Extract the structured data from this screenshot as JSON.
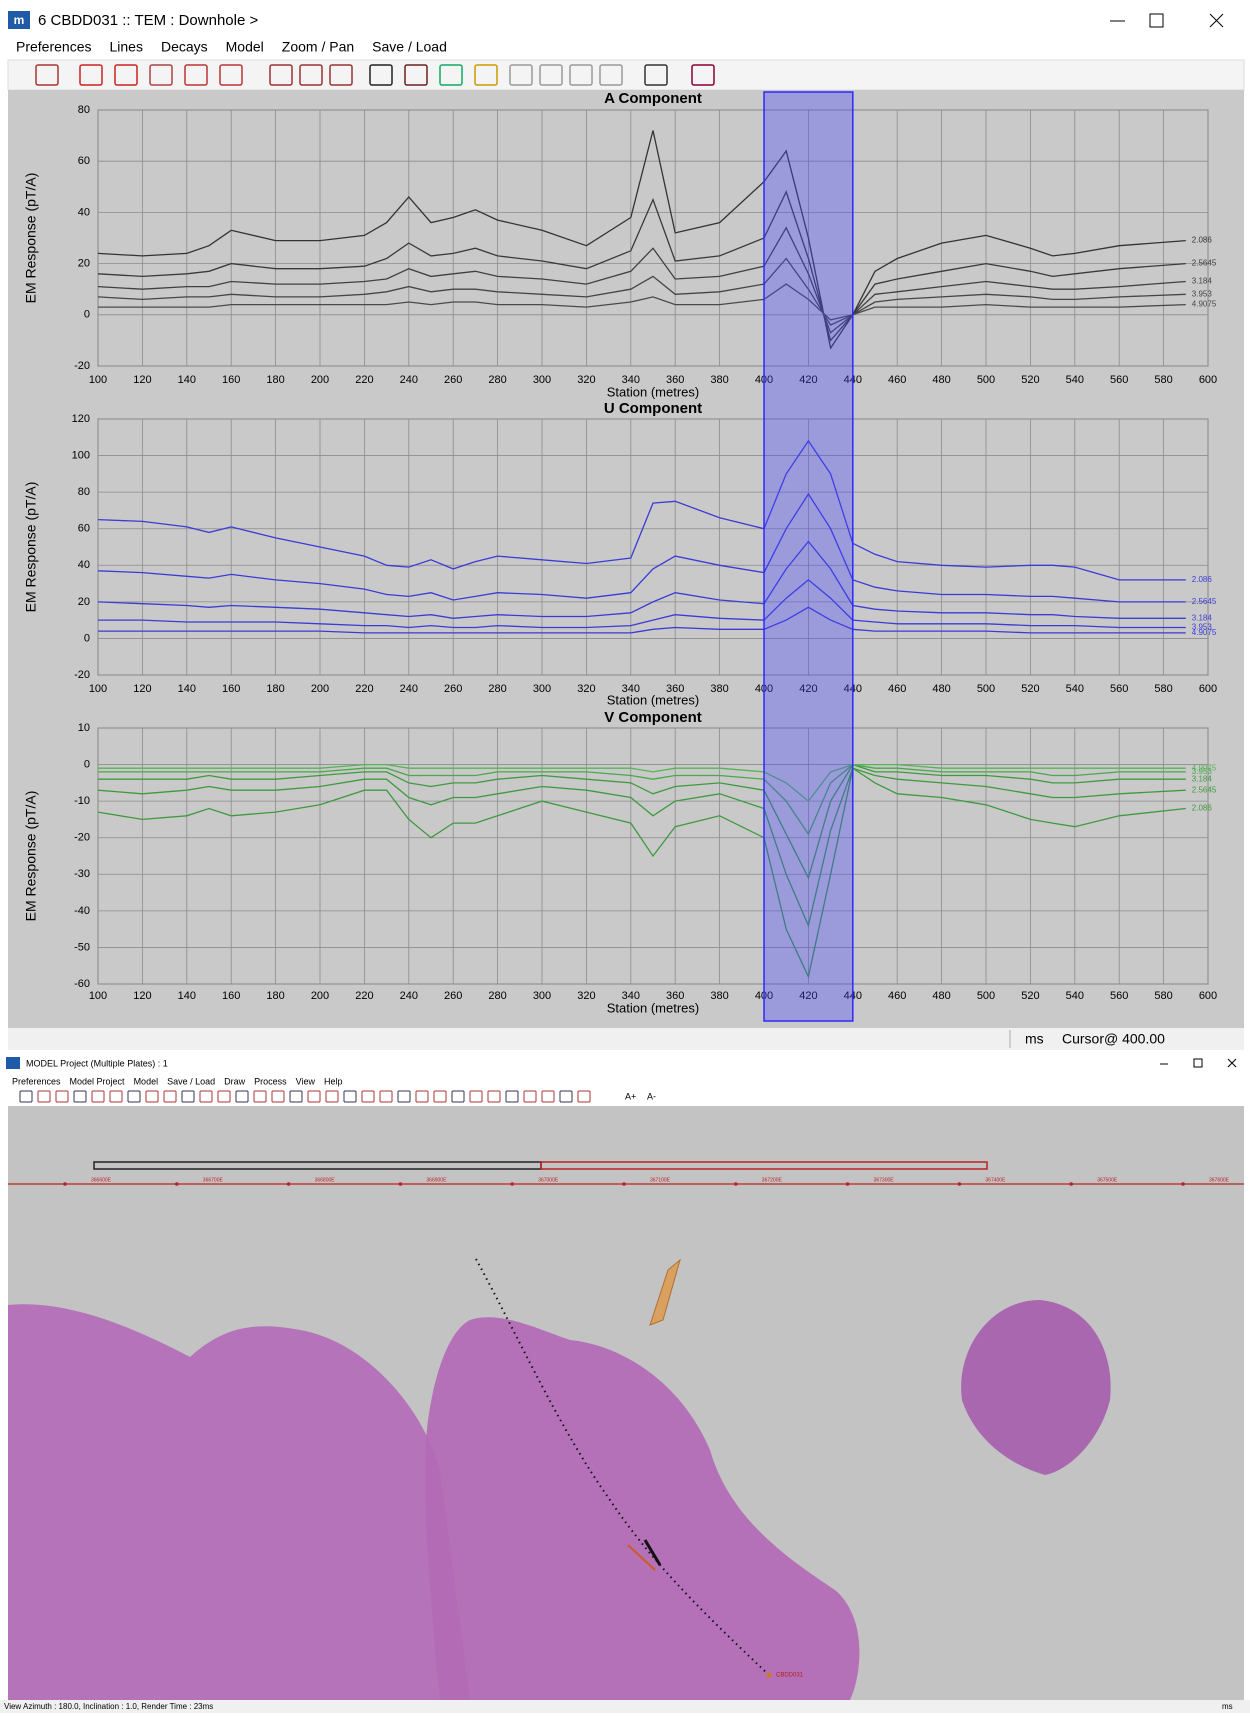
{
  "window": {
    "title": "6 CBDD031 :: TEM : Downhole >",
    "menu": [
      "Preferences",
      "Lines",
      "Decays",
      "Model",
      "Zoom / Pan",
      "Save / Load"
    ],
    "status_unit": "ms",
    "status_cursor": "Cursor@ 400.00"
  },
  "chart_data": [
    {
      "type": "line",
      "title": "A Component",
      "xlabel": "Station (metres)",
      "ylabel": "EM Response (pT/A)",
      "highlight": [
        400,
        440
      ],
      "x": [
        100,
        120,
        140,
        150,
        160,
        180,
        200,
        220,
        230,
        240,
        250,
        260,
        270,
        280,
        300,
        320,
        340,
        350,
        360,
        380,
        400,
        410,
        420,
        430,
        440,
        450,
        460,
        480,
        500,
        520,
        530,
        540,
        560,
        590
      ],
      "xlim": [
        100,
        600
      ],
      "xticks": [
        100,
        120,
        140,
        160,
        180,
        200,
        220,
        240,
        260,
        280,
        300,
        320,
        340,
        360,
        380,
        400,
        420,
        440,
        460,
        480,
        500,
        520,
        540,
        560,
        580,
        600
      ],
      "ylim": [
        -20,
        80
      ],
      "yticks": [
        -20,
        0,
        20,
        40,
        60,
        80
      ],
      "grid": true,
      "series": [
        {
          "name": "2.086",
          "color": "#333333",
          "values": [
            24,
            23,
            24,
            27,
            33,
            29,
            29,
            31,
            36,
            46,
            36,
            38,
            41,
            37,
            33,
            27,
            38,
            72,
            32,
            36,
            52,
            64,
            30,
            -13,
            0,
            17,
            22,
            28,
            31,
            26,
            23,
            24,
            27,
            29
          ]
        },
        {
          "name": "2.5645",
          "color": "#3a3a3a",
          "values": [
            16,
            15,
            16,
            17,
            20,
            18,
            18,
            19,
            22,
            28,
            23,
            24,
            26,
            23,
            21,
            18,
            25,
            45,
            21,
            23,
            30,
            48,
            22,
            -10,
            0,
            12,
            14,
            17,
            20,
            17,
            15,
            16,
            18,
            20
          ]
        },
        {
          "name": "3.184",
          "color": "#404040",
          "values": [
            11,
            10,
            11,
            11,
            13,
            12,
            12,
            13,
            14,
            18,
            15,
            16,
            17,
            15,
            14,
            12,
            17,
            26,
            14,
            15,
            19,
            34,
            16,
            -7,
            0,
            8,
            9,
            11,
            13,
            11,
            10,
            10,
            11,
            13
          ]
        },
        {
          "name": "3.953",
          "color": "#454545",
          "values": [
            7,
            6,
            7,
            7,
            8,
            7,
            7,
            8,
            9,
            11,
            9,
            10,
            10,
            9,
            8,
            7,
            10,
            15,
            8,
            9,
            12,
            22,
            10,
            -4,
            0,
            5,
            6,
            7,
            8,
            7,
            6,
            6,
            7,
            8
          ]
        },
        {
          "name": "4.9075",
          "color": "#4a4a4a",
          "values": [
            3,
            3,
            3,
            3,
            4,
            4,
            4,
            4,
            4,
            5,
            4,
            5,
            5,
            4,
            4,
            3,
            5,
            7,
            4,
            4,
            6,
            12,
            6,
            -2,
            0,
            3,
            3,
            3,
            4,
            3,
            3,
            3,
            3,
            4
          ]
        }
      ]
    },
    {
      "type": "line",
      "title": "U Component",
      "xlabel": "Station (metres)",
      "ylabel": "EM Response (pT/A)",
      "highlight": [
        400,
        440
      ],
      "x": [
        100,
        120,
        140,
        150,
        160,
        180,
        200,
        220,
        230,
        240,
        250,
        260,
        270,
        280,
        300,
        320,
        340,
        350,
        360,
        380,
        400,
        410,
        420,
        430,
        440,
        450,
        460,
        480,
        500,
        520,
        530,
        540,
        560,
        590
      ],
      "xlim": [
        100,
        600
      ],
      "xticks": [
        100,
        120,
        140,
        160,
        180,
        200,
        220,
        240,
        260,
        280,
        300,
        320,
        340,
        360,
        380,
        400,
        420,
        440,
        460,
        480,
        500,
        520,
        540,
        560,
        580,
        600
      ],
      "ylim": [
        -20,
        120
      ],
      "yticks": [
        -20,
        0,
        20,
        40,
        60,
        80,
        100,
        120
      ],
      "grid": true,
      "series": [
        {
          "name": "2.086",
          "color": "#3b3bd6",
          "values": [
            65,
            64,
            61,
            58,
            61,
            55,
            50,
            45,
            40,
            39,
            43,
            38,
            42,
            45,
            43,
            41,
            44,
            74,
            75,
            66,
            60,
            90,
            108,
            90,
            52,
            46,
            42,
            40,
            39,
            40,
            40,
            39,
            32,
            32
          ]
        },
        {
          "name": "2.5645",
          "color": "#3b3bd6",
          "values": [
            37,
            36,
            34,
            33,
            35,
            32,
            30,
            27,
            24,
            23,
            25,
            21,
            23,
            25,
            24,
            22,
            25,
            38,
            45,
            40,
            36,
            60,
            79,
            60,
            32,
            28,
            26,
            24,
            24,
            23,
            23,
            22,
            20,
            20
          ]
        },
        {
          "name": "3.184",
          "color": "#3b3bd6",
          "values": [
            20,
            19,
            18,
            17,
            18,
            17,
            16,
            14,
            13,
            12,
            13,
            11,
            12,
            13,
            12,
            12,
            14,
            20,
            25,
            21,
            19,
            38,
            53,
            38,
            18,
            16,
            15,
            14,
            14,
            13,
            13,
            12,
            11,
            11
          ]
        },
        {
          "name": "3.953",
          "color": "#3b3bd6",
          "values": [
            10,
            10,
            9,
            9,
            9,
            9,
            8,
            7,
            7,
            6,
            7,
            6,
            6,
            7,
            6,
            6,
            7,
            10,
            13,
            11,
            10,
            22,
            32,
            22,
            10,
            9,
            8,
            8,
            8,
            7,
            7,
            7,
            6,
            6
          ]
        },
        {
          "name": "4.9075",
          "color": "#3b3bd6",
          "values": [
            4,
            4,
            4,
            4,
            4,
            4,
            4,
            3,
            3,
            3,
            3,
            3,
            3,
            3,
            3,
            3,
            3,
            5,
            6,
            5,
            5,
            10,
            17,
            10,
            5,
            4,
            4,
            4,
            4,
            3,
            3,
            3,
            3,
            3
          ]
        }
      ]
    },
    {
      "type": "line",
      "title": "V Component",
      "xlabel": "Station (metres)",
      "ylabel": "EM Response (pT/A)",
      "highlight": [
        400,
        440
      ],
      "x": [
        100,
        120,
        140,
        150,
        160,
        180,
        200,
        220,
        230,
        240,
        250,
        260,
        270,
        280,
        300,
        320,
        340,
        350,
        360,
        380,
        400,
        410,
        420,
        430,
        440,
        450,
        460,
        480,
        500,
        520,
        530,
        540,
        560,
        590
      ],
      "xlim": [
        100,
        600
      ],
      "xticks": [
        100,
        120,
        140,
        160,
        180,
        200,
        220,
        240,
        260,
        280,
        300,
        320,
        340,
        360,
        380,
        400,
        420,
        440,
        460,
        480,
        500,
        520,
        540,
        560,
        580,
        600
      ],
      "ylim": [
        -60,
        10
      ],
      "yticks": [
        -60,
        -50,
        -40,
        -30,
        -20,
        -10,
        0,
        10
      ],
      "grid": true,
      "series": [
        {
          "name": "2.086",
          "color": "#3f9a3f",
          "values": [
            -13,
            -15,
            -14,
            -12,
            -14,
            -13,
            -11,
            -7,
            -7,
            -15,
            -20,
            -16,
            -16,
            -14,
            -10,
            -13,
            -16,
            -25,
            -17,
            -14,
            -20,
            -45,
            -58,
            -30,
            -1,
            -5,
            -8,
            -9,
            -11,
            -15,
            -16,
            -17,
            -14,
            -12
          ]
        },
        {
          "name": "2.5645",
          "color": "#3f9a3f",
          "values": [
            -7,
            -8,
            -7,
            -6,
            -7,
            -7,
            -6,
            -4,
            -4,
            -9,
            -11,
            -9,
            -9,
            -8,
            -6,
            -7,
            -9,
            -14,
            -10,
            -8,
            -12,
            -30,
            -44,
            -18,
            -1,
            -3,
            -4,
            -5,
            -6,
            -8,
            -9,
            -9,
            -8,
            -7
          ]
        },
        {
          "name": "3.184",
          "color": "#3f9a3f",
          "values": [
            -4,
            -4,
            -4,
            -3,
            -4,
            -4,
            -3,
            -2,
            -2,
            -5,
            -6,
            -5,
            -5,
            -4,
            -3,
            -4,
            -5,
            -8,
            -6,
            -5,
            -7,
            -19,
            -31,
            -10,
            0,
            -2,
            -2,
            -3,
            -3,
            -4,
            -5,
            -5,
            -4,
            -4
          ]
        },
        {
          "name": "3.953",
          "color": "#4aa84a",
          "values": [
            -2,
            -2,
            -2,
            -2,
            -2,
            -2,
            -2,
            -1,
            -1,
            -3,
            -3,
            -3,
            -3,
            -2,
            -2,
            -2,
            -3,
            -4,
            -3,
            -3,
            -4,
            -10,
            -19,
            -5,
            0,
            -1,
            -1,
            -2,
            -2,
            -2,
            -3,
            -3,
            -2,
            -2
          ]
        },
        {
          "name": "4.9075",
          "color": "#55b555",
          "values": [
            -1,
            -1,
            -1,
            -1,
            -1,
            -1,
            -1,
            0,
            0,
            -1,
            -1,
            -1,
            -1,
            -1,
            -1,
            -1,
            -1,
            -2,
            -1,
            -1,
            -2,
            -5,
            -10,
            -2,
            0,
            0,
            0,
            -1,
            -1,
            -1,
            -1,
            -1,
            -1,
            -1
          ]
        }
      ]
    }
  ],
  "model_window": {
    "title": "MODEL Project (Multiple Plates) : 1",
    "menu": [
      "Preferences",
      "Model Project",
      "Model",
      "Save / Load",
      "Draw",
      "Process",
      "View",
      "Help"
    ],
    "font_buttons": [
      "A+",
      "A-"
    ],
    "eastings": [
      "366600E",
      "366700E",
      "366800E",
      "366900E",
      "367000E",
      "367100E",
      "367200E",
      "367300E",
      "367400E",
      "367500E",
      "367600E"
    ],
    "hole_label": "CBDD031",
    "status": "View Azimuth : 180.0, Inclination : 1.0, Render Time : 23ms",
    "status_unit": "ms"
  }
}
